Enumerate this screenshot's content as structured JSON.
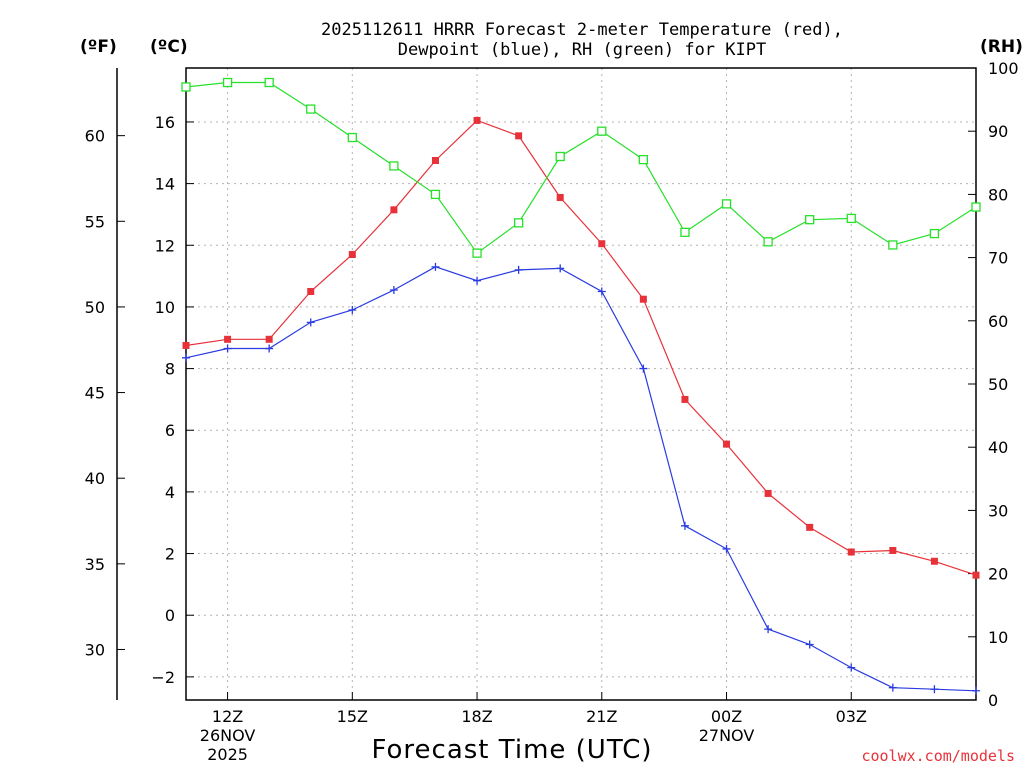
{
  "chart_data": {
    "type": "line",
    "title_line1": "2025112611 HRRR Forecast 2-meter Temperature (red),",
    "title_line2": "Dewpoint (blue), RH (green) for KIPT",
    "xlabel": "Forecast Time (UTC)",
    "credit": "coolwx.com/models",
    "axis_units": {
      "fahrenheit": "(ºF)",
      "celsius": "(ºC)",
      "rh": "(RH)"
    },
    "x": [
      11,
      12,
      13,
      14,
      15,
      16,
      17,
      18,
      19,
      20,
      21,
      22,
      23,
      24,
      25,
      26,
      27,
      28,
      29,
      30
    ],
    "xlim": [
      11,
      30
    ],
    "x_ticks": [
      {
        "x": 12,
        "label": "12Z",
        "sub1": "26NOV",
        "sub2": "2025"
      },
      {
        "x": 15,
        "label": "15Z",
        "sub1": "",
        "sub2": ""
      },
      {
        "x": 18,
        "label": "18Z",
        "sub1": "",
        "sub2": ""
      },
      {
        "x": 21,
        "label": "21Z",
        "sub1": "",
        "sub2": ""
      },
      {
        "x": 24,
        "label": "00Z",
        "sub1": "27NOV",
        "sub2": ""
      },
      {
        "x": 27,
        "label": "03Z",
        "sub1": "",
        "sub2": ""
      }
    ],
    "celsius_ticks": [
      "16",
      "14",
      "12",
      "10",
      "8",
      "6",
      "4",
      "2",
      "0",
      "−2"
    ],
    "celsius_range": [
      -2.75,
      17.75
    ],
    "fahrenheit_ticks": [
      "60",
      "55",
      "50",
      "45",
      "40",
      "35",
      "30"
    ],
    "rh_ticks": [
      "100",
      "90",
      "80",
      "70",
      "60",
      "50",
      "40",
      "30",
      "20",
      "10",
      "0"
    ],
    "rh_range": [
      0,
      100
    ],
    "series": [
      {
        "name": "2-meter Temperature",
        "axis": "celsius",
        "color": "#e8323a",
        "marker": "filled-square",
        "values": [
          8.75,
          8.95,
          8.95,
          10.5,
          11.7,
          13.15,
          14.75,
          16.05,
          15.55,
          13.55,
          12.05,
          10.25,
          7.0,
          5.55,
          3.95,
          2.85,
          2.05,
          2.1,
          1.75,
          1.3
        ]
      },
      {
        "name": "Dewpoint",
        "axis": "celsius",
        "color": "#2a3ce0",
        "marker": "plus",
        "values": [
          8.35,
          8.65,
          8.65,
          9.5,
          9.9,
          10.55,
          11.3,
          10.85,
          11.2,
          11.25,
          10.5,
          8.0,
          2.9,
          2.15,
          -0.45,
          -0.95,
          -1.7,
          -2.35,
          -2.4,
          -2.45
        ]
      },
      {
        "name": "RH",
        "axis": "rh",
        "color": "#27e02a",
        "marker": "open-square",
        "values": [
          97,
          97.7,
          97.7,
          93.5,
          89,
          84.5,
          80,
          70.7,
          75.5,
          86,
          90,
          85.5,
          74,
          78.5,
          72.5,
          76,
          76.2,
          72,
          73.8,
          78
        ]
      }
    ]
  }
}
